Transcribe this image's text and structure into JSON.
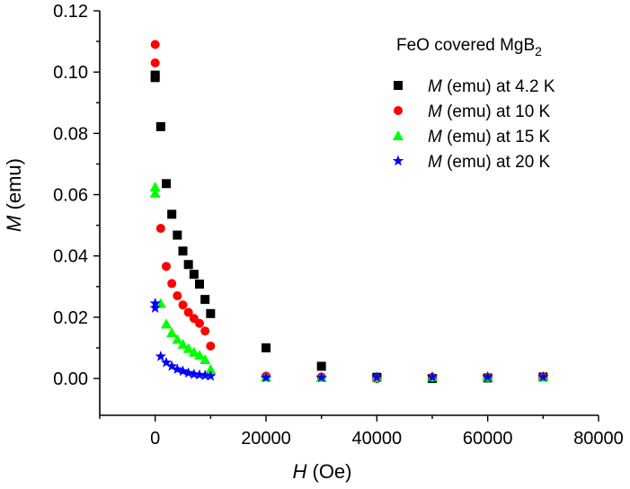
{
  "chart_data": {
    "type": "scatter",
    "title": "",
    "legend_title": {
      "prefix": "FeO covered MgB",
      "subscript": "2"
    },
    "legend_position": "top-right",
    "xlabel": {
      "italic": "H",
      "rest": " (Oe)"
    },
    "ylabel": {
      "italic": "M",
      "rest": " (emu)"
    },
    "xlim": [
      -10000,
      80000
    ],
    "ylim": [
      -0.012,
      0.12
    ],
    "x_ticks": [
      0,
      20000,
      40000,
      60000,
      80000
    ],
    "x_tick_labels": [
      "0",
      "20000",
      "40000",
      "60000",
      "80000"
    ],
    "y_ticks": [
      0.0,
      0.02,
      0.04,
      0.06,
      0.08,
      0.1,
      0.12
    ],
    "y_tick_labels": [
      "0.00",
      "0.02",
      "0.04",
      "0.06",
      "0.08",
      "0.10",
      "0.12"
    ],
    "grid": false,
    "series": [
      {
        "name": "4.2 K",
        "label_italic": "M",
        "label_rest": " (emu) at 4.2 K",
        "marker": "square",
        "color": "#000000",
        "x": [
          0,
          0,
          1000,
          2000,
          3000,
          4000,
          5000,
          6000,
          7000,
          8000,
          9000,
          10000,
          20000,
          30000,
          40000,
          50000,
          60000,
          70000
        ],
        "y": [
          0.099,
          0.0982,
          0.0822,
          0.0636,
          0.0536,
          0.0468,
          0.0416,
          0.0372,
          0.034,
          0.0308,
          0.0258,
          0.0212,
          0.01,
          0.004,
          0.0004,
          0.0,
          0.0002,
          0.0005
        ]
      },
      {
        "name": "10 K",
        "label_italic": "M",
        "label_rest": " (emu) at 10 K",
        "marker": "circle",
        "color": "#ff0000",
        "x": [
          0,
          0,
          1000,
          2000,
          3000,
          4000,
          5000,
          6000,
          7000,
          8000,
          9000,
          10000,
          20000,
          30000,
          40000,
          50000,
          60000,
          70000
        ],
        "y": [
          0.109,
          0.103,
          0.049,
          0.0366,
          0.031,
          0.027,
          0.024,
          0.0216,
          0.0196,
          0.018,
          0.0155,
          0.0106,
          0.0008,
          0.0005,
          0.0,
          0.0004,
          0.0004,
          0.0005
        ]
      },
      {
        "name": "15 K",
        "label_italic": "M",
        "label_rest": " (emu) at 15 K",
        "marker": "triangle",
        "color": "#00ff00",
        "x": [
          0,
          0,
          1000,
          2000,
          3000,
          4000,
          5000,
          6000,
          7000,
          8000,
          9000,
          10000,
          20000,
          30000,
          40000,
          50000,
          60000,
          70000
        ],
        "y": [
          0.0625,
          0.0605,
          0.0245,
          0.0178,
          0.015,
          0.0128,
          0.0112,
          0.0098,
          0.0086,
          0.0076,
          0.0062,
          0.003,
          0.0005,
          0.0004,
          0.0004,
          0.0005,
          0.0005,
          0.0005
        ]
      },
      {
        "name": "20 K",
        "label_italic": "M",
        "label_rest": " (emu) at 20 K",
        "marker": "star",
        "color": "#0000ff",
        "x": [
          0,
          0,
          1000,
          2000,
          3000,
          4000,
          5000,
          6000,
          7000,
          8000,
          9000,
          10000,
          20000,
          30000,
          40000,
          50000,
          60000,
          70000
        ],
        "y": [
          0.0245,
          0.023,
          0.0072,
          0.0052,
          0.004,
          0.003,
          0.0024,
          0.0018,
          0.0014,
          0.0012,
          0.001,
          0.0008,
          0.0003,
          0.0003,
          0.0004,
          0.0005,
          0.0005,
          0.0005
        ]
      }
    ]
  }
}
